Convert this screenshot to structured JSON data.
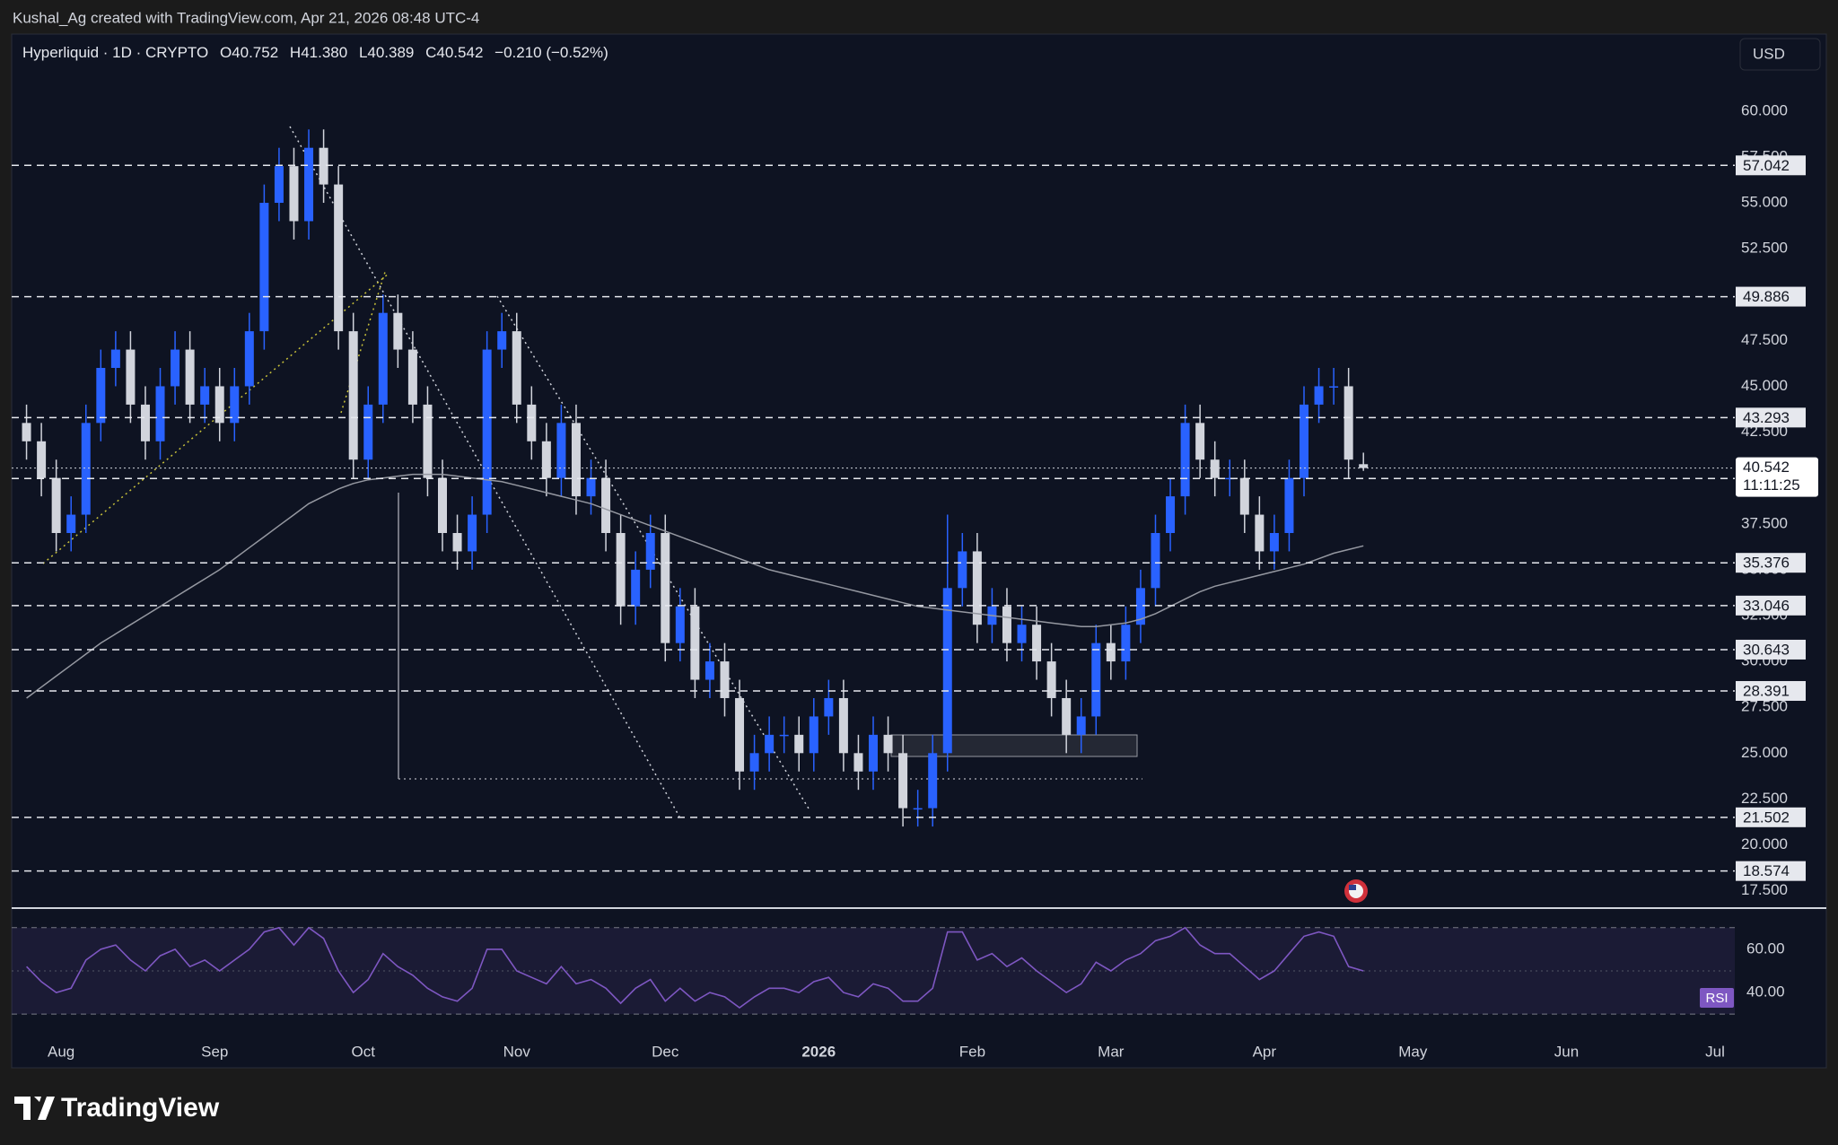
{
  "header": {
    "credit": "Kushal_Ag created with TradingView.com, Apr 21, 2026 08:48 UTC-4",
    "symbol": "Hyperliquid · 1D · CRYPTO",
    "ohlc": [
      "O40.752",
      "H41.380",
      "L40.389",
      "C40.542",
      "−0.210 (−0.52%)"
    ],
    "currency": "USD"
  },
  "footer": {
    "brand": "TradingView"
  },
  "chart_data": [
    {
      "type": "candlestick",
      "open": [
        43,
        42,
        40,
        37,
        38,
        43,
        46,
        47,
        44,
        42,
        45,
        47,
        44,
        45,
        43,
        45,
        48,
        55,
        57,
        54,
        58,
        56,
        48,
        41,
        44,
        49,
        47,
        44,
        40,
        37,
        36,
        38,
        47,
        48,
        44,
        42,
        40,
        43,
        39,
        40,
        37,
        33,
        35,
        37,
        31,
        33,
        29,
        30,
        28,
        24,
        25,
        26,
        26,
        25,
        27,
        28,
        25,
        24,
        26,
        25,
        22,
        22,
        25,
        34,
        36,
        32,
        33,
        31,
        32,
        30,
        28,
        26,
        27,
        31,
        30,
        32,
        34,
        37,
        39,
        43,
        41,
        40,
        40,
        38,
        36,
        37,
        40,
        44,
        45,
        45,
        40.752
      ],
      "high": [
        44,
        43,
        41,
        39,
        44,
        47,
        48,
        48,
        45,
        46,
        48,
        48,
        46,
        46,
        46,
        49,
        56,
        58,
        58,
        59,
        59,
        57,
        49,
        45,
        50,
        50,
        48,
        45,
        41,
        38,
        39,
        48,
        49,
        49,
        45,
        43,
        44,
        44,
        41,
        41,
        38,
        36,
        38,
        38,
        34,
        34,
        31,
        31,
        29,
        26,
        27,
        27,
        27,
        28,
        29,
        29,
        26,
        27,
        27,
        26,
        23,
        26,
        38,
        37,
        37,
        34,
        34,
        33,
        33,
        31,
        29,
        28,
        32,
        32,
        33,
        35,
        38,
        40,
        44,
        44,
        42,
        41,
        41,
        39,
        38,
        41,
        45,
        46,
        46,
        46,
        41.38
      ],
      "low": [
        41,
        39,
        36,
        36,
        37,
        42,
        45,
        43,
        41,
        41,
        44,
        43,
        43,
        42,
        42,
        44,
        47,
        54,
        53,
        53,
        55,
        47,
        40,
        40,
        43,
        46,
        43,
        39,
        36,
        35,
        35,
        37,
        46,
        43,
        41,
        39,
        39,
        38,
        38,
        36,
        32,
        32,
        34,
        30,
        30,
        28,
        28,
        27,
        23,
        23,
        24,
        25,
        24,
        24,
        26,
        24,
        23,
        23,
        24,
        21,
        21,
        21,
        24,
        33,
        31,
        31,
        30,
        30,
        29,
        27,
        25,
        25,
        26,
        29,
        29,
        31,
        33,
        36,
        38,
        40,
        39,
        39,
        37,
        35,
        35,
        36,
        39,
        43,
        44,
        40,
        40.389
      ],
      "close": [
        42,
        40,
        37,
        38,
        43,
        46,
        47,
        44,
        42,
        45,
        47,
        44,
        45,
        43,
        45,
        48,
        55,
        57,
        54,
        58,
        56,
        48,
        41,
        44,
        49,
        47,
        44,
        40,
        37,
        36,
        38,
        47,
        48,
        44,
        42,
        40,
        43,
        39,
        40,
        37,
        33,
        35,
        37,
        31,
        33,
        29,
        30,
        28,
        24,
        25,
        26,
        26,
        25,
        27,
        28,
        25,
        24,
        26,
        25,
        22,
        22,
        25,
        34,
        36,
        32,
        33,
        31,
        32,
        30,
        28,
        26,
        27,
        31,
        30,
        32,
        34,
        37,
        39,
        43,
        41,
        40,
        40,
        38,
        36,
        37,
        40,
        44,
        45,
        45,
        41,
        40.542
      ],
      "up_color": "#2962ff",
      "down_color": "#d1d4dc",
      "ma_values": [
        28,
        28.6,
        29.2,
        29.8,
        30.4,
        31,
        31.5,
        32,
        32.5,
        33,
        33.5,
        34,
        34.5,
        35,
        35.6,
        36.2,
        36.8,
        37.4,
        38,
        38.6,
        39,
        39.4,
        39.7,
        39.9,
        40,
        40.1,
        40.2,
        40.2,
        40.2,
        40.1,
        40,
        39.9,
        39.8,
        39.6,
        39.4,
        39.2,
        39,
        38.8,
        38.6,
        38.3,
        38,
        37.7,
        37.4,
        37.1,
        36.8,
        36.5,
        36.2,
        35.9,
        35.6,
        35.3,
        35,
        34.8,
        34.6,
        34.4,
        34.2,
        34,
        33.8,
        33.6,
        33.4,
        33.2,
        33,
        32.9,
        32.8,
        32.7,
        32.6,
        32.5,
        32.4,
        32.3,
        32.2,
        32.1,
        32,
        31.9,
        31.9,
        32,
        32.1,
        32.3,
        32.6,
        33,
        33.4,
        33.8,
        34.1,
        34.3,
        34.5,
        34.7,
        34.9,
        35.1,
        35.3,
        35.6,
        35.9,
        36.1,
        36.3
      ],
      "ma_color": "#9598a1",
      "levels": [
        57.042,
        49.886,
        43.293,
        39.974,
        35.376,
        33.046,
        30.643,
        28.391,
        21.502,
        18.574
      ],
      "countdown": "11:11:25",
      "xlim": [
        -1,
        115
      ],
      "xticks": [
        {
          "value": 2.33,
          "label": "Aug"
        },
        {
          "value": 12.67,
          "label": "Sep"
        },
        {
          "value": 22.67,
          "label": "Oct"
        },
        {
          "value": 33,
          "label": "Nov"
        },
        {
          "value": 43,
          "label": "Dec"
        },
        {
          "value": 53.33,
          "label": "2026"
        },
        {
          "value": 63.67,
          "label": "Feb"
        },
        {
          "value": 73,
          "label": "Mar"
        },
        {
          "value": 83.33,
          "label": "Apr"
        },
        {
          "value": 93.33,
          "label": "May"
        },
        {
          "value": 103.67,
          "label": "Jun"
        },
        {
          "value": 113.67,
          "label": "Jul"
        }
      ],
      "ylim": [
        16.65,
        64.1
      ],
      "yticks": [
        {
          "value": 17.5,
          "label": "17.500"
        },
        {
          "value": 20,
          "label": "20.000"
        },
        {
          "value": 22.5,
          "label": "22.500"
        },
        {
          "value": 25,
          "label": "25.000"
        },
        {
          "value": 27.5,
          "label": "27.500"
        },
        {
          "value": 30,
          "label": "30.000"
        },
        {
          "value": 32.5,
          "label": "32.500"
        },
        {
          "value": 35,
          "label": "35.000"
        },
        {
          "value": 37.5,
          "label": "37.500"
        },
        {
          "value": 40,
          "label": "40.000"
        },
        {
          "value": 42.5,
          "label": "42.500"
        },
        {
          "value": 45,
          "label": "45.000"
        },
        {
          "value": 47.5,
          "label": "47.500"
        },
        {
          "value": 50,
          "label": "50.000"
        },
        {
          "value": 52.5,
          "label": "52.500"
        },
        {
          "value": 55,
          "label": "55.000"
        },
        {
          "value": 57.5,
          "label": "57.500"
        },
        {
          "value": 60,
          "label": "60.000"
        }
      ]
    },
    {
      "type": "line",
      "name": "RSI",
      "color": "#7e57c2",
      "values": [
        52,
        45,
        40,
        42,
        55,
        60,
        62,
        55,
        50,
        57,
        60,
        52,
        55,
        50,
        55,
        60,
        68,
        70,
        62,
        70,
        65,
        50,
        40,
        46,
        58,
        52,
        48,
        42,
        38,
        36,
        42,
        60,
        60,
        50,
        47,
        44,
        52,
        44,
        46,
        42,
        35,
        42,
        46,
        36,
        42,
        36,
        40,
        38,
        33,
        38,
        42,
        42,
        40,
        45,
        47,
        40,
        38,
        44,
        42,
        36,
        36,
        42,
        68,
        68,
        55,
        58,
        52,
        56,
        50,
        45,
        40,
        44,
        54,
        50,
        55,
        58,
        64,
        66,
        70,
        62,
        58,
        58,
        52,
        46,
        50,
        58,
        66,
        68,
        66,
        52,
        50
      ],
      "bands": [
        30,
        70
      ],
      "midline": 50,
      "ylim": [
        19.7,
        77.8
      ],
      "yticks": [
        {
          "value": 60,
          "label": "60.00"
        },
        {
          "value": 40,
          "label": "40.00"
        }
      ]
    }
  ]
}
